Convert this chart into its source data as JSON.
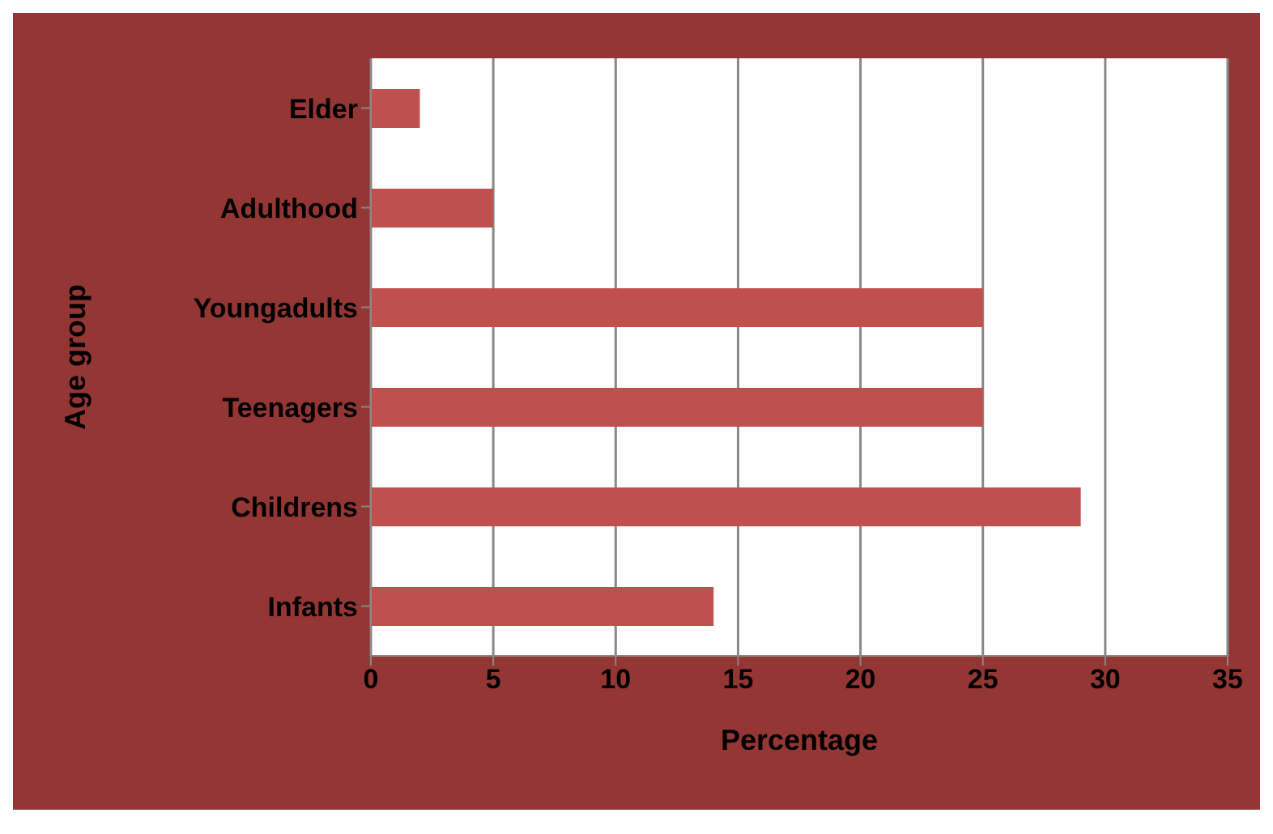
{
  "chart_data": {
    "type": "bar",
    "orientation": "horizontal",
    "xlabel": "Percentage",
    "ylabel": "Age group",
    "categories": [
      "Elder",
      "Adulthood",
      "Youngadults",
      "Teenagers",
      "Childrens",
      "Infants"
    ],
    "values": [
      2,
      5,
      25,
      25,
      29,
      14
    ],
    "color": "#c0504d",
    "xlim": [
      0,
      35
    ],
    "xticks": [
      0,
      5,
      10,
      15,
      20,
      25,
      30,
      35
    ],
    "grid": "x"
  }
}
